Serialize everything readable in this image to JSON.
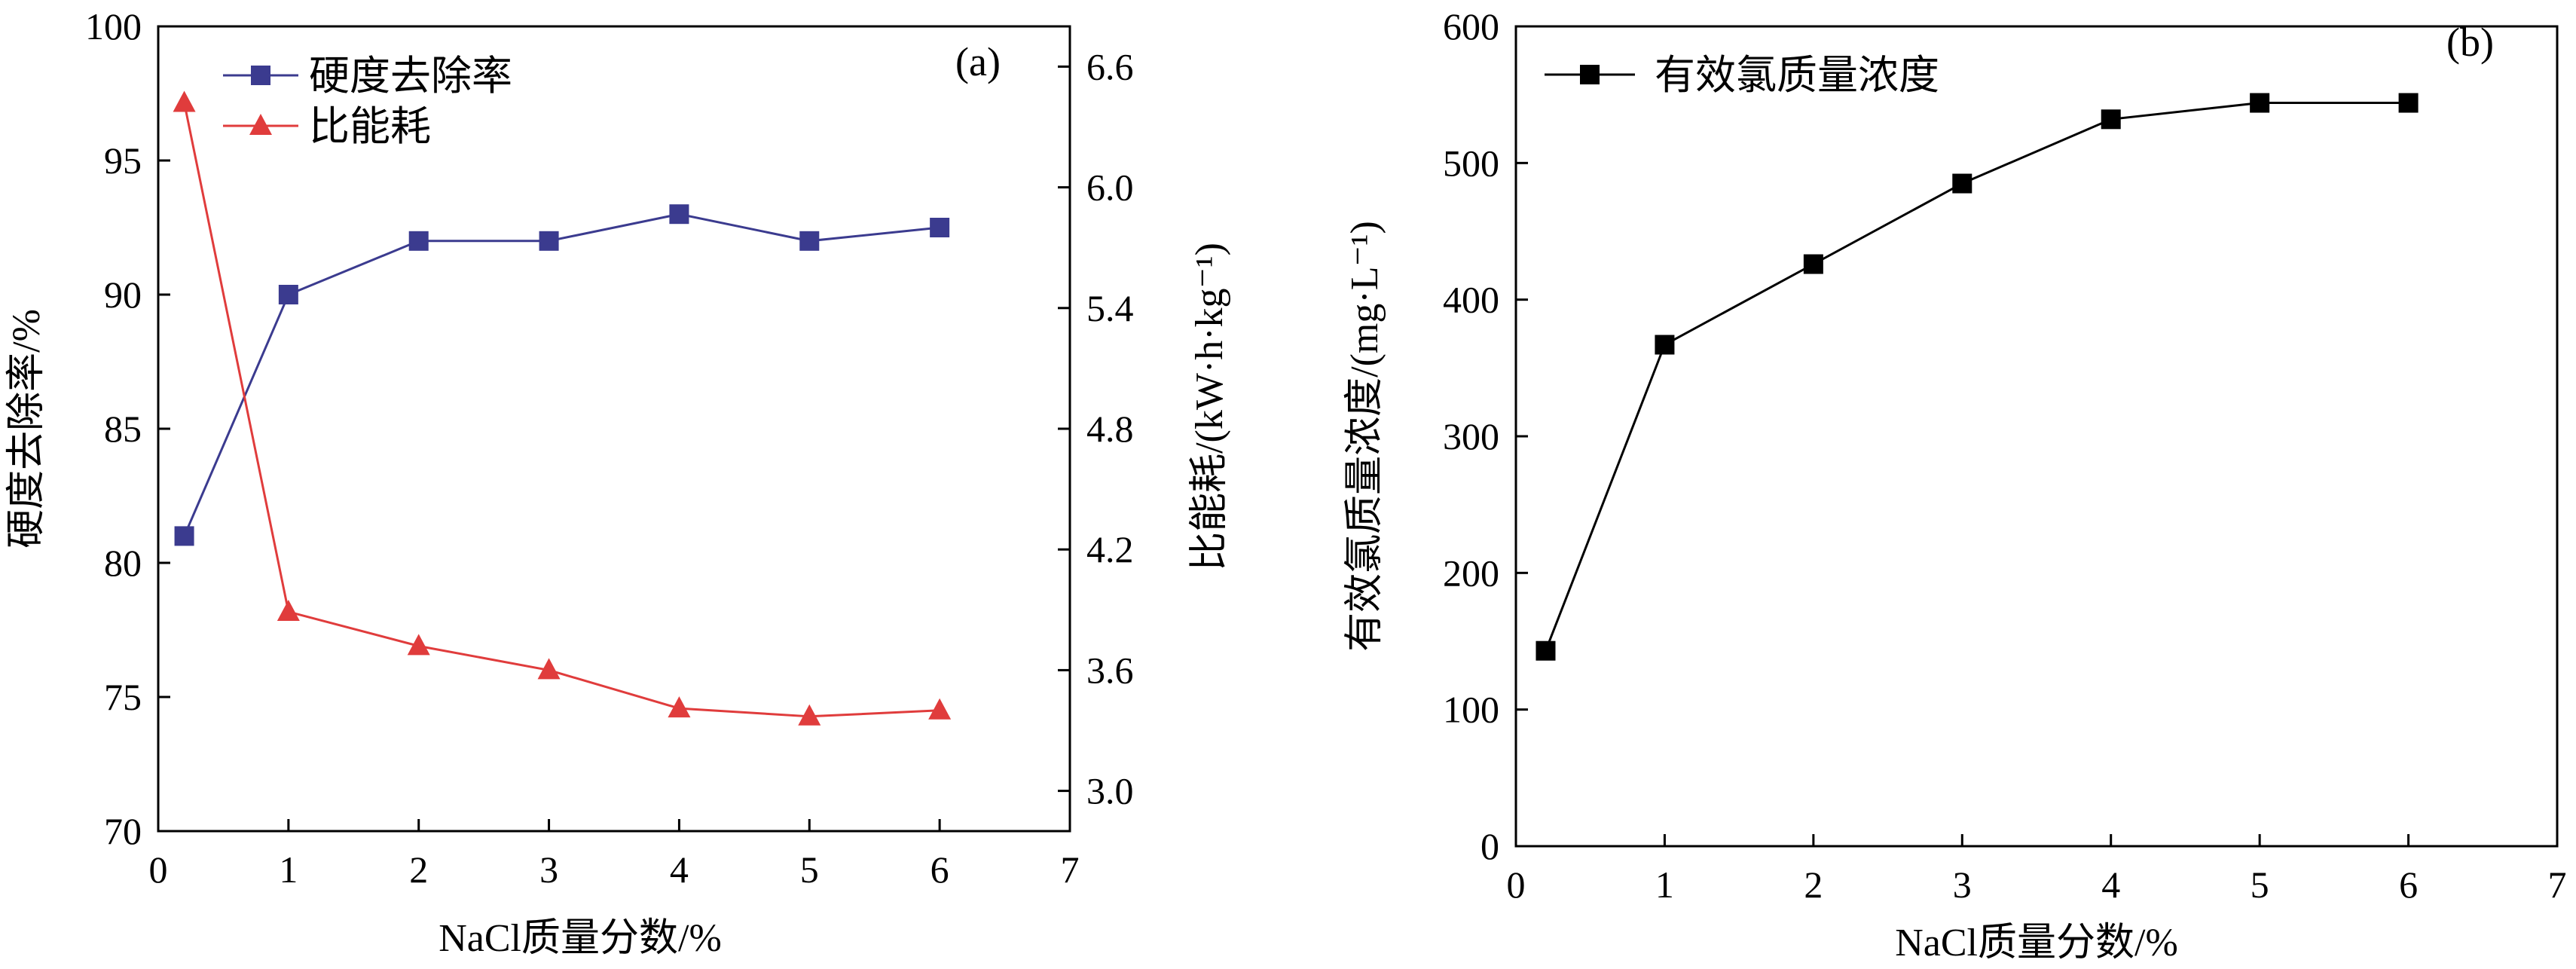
{
  "chart_data": [
    {
      "type": "line",
      "panel_label": "(a)",
      "xlabel": "NaCl质量分数/%",
      "ylabel": "硬度去除率/%",
      "y2label": "比能耗/(kW·h·kg⁻¹)",
      "xlim": [
        0,
        7
      ],
      "ylim": [
        70,
        100
      ],
      "y2lim": [
        2.8,
        6.8
      ],
      "x_ticks": [
        "0",
        "1",
        "2",
        "3",
        "4",
        "5",
        "6",
        "7"
      ],
      "y_ticks": [
        "70",
        "75",
        "80",
        "85",
        "90",
        "95",
        "100"
      ],
      "y2_ticks": [
        "3.0",
        "3.6",
        "4.2",
        "4.8",
        "5.4",
        "6.0",
        "6.6"
      ],
      "legend_position": "top-left",
      "series": [
        {
          "name": "硬度去除率",
          "axis": "left",
          "marker": "square",
          "color": "#3b3b8f",
          "x": [
            0.2,
            1,
            2,
            3,
            4,
            5,
            6
          ],
          "values": [
            81.0,
            90.0,
            92.0,
            92.0,
            93.0,
            92.0,
            92.5
          ]
        },
        {
          "name": "比能耗",
          "axis": "right",
          "marker": "triangle",
          "color": "#e03c3c",
          "x": [
            0.2,
            1,
            2,
            3,
            4,
            5,
            6
          ],
          "values": [
            6.42,
            3.89,
            3.72,
            3.6,
            3.41,
            3.37,
            3.4
          ]
        }
      ]
    },
    {
      "type": "line",
      "panel_label": "(b)",
      "xlabel": "NaCl质量分数/%",
      "ylabel": "有效氯质量浓度/(mg·L⁻¹)",
      "xlim": [
        0,
        7
      ],
      "ylim": [
        0,
        600
      ],
      "x_ticks": [
        "0",
        "1",
        "2",
        "3",
        "4",
        "5",
        "6",
        "7"
      ],
      "y_ticks": [
        "0",
        "100",
        "200",
        "300",
        "400",
        "500",
        "600"
      ],
      "legend_position": "top-left",
      "series": [
        {
          "name": "有效氯质量浓度",
          "marker": "square",
          "color": "#000000",
          "x": [
            0.2,
            1,
            2,
            3,
            4,
            5,
            6
          ],
          "values": [
            143,
            367,
            426,
            485,
            532,
            544,
            544
          ]
        }
      ]
    }
  ]
}
